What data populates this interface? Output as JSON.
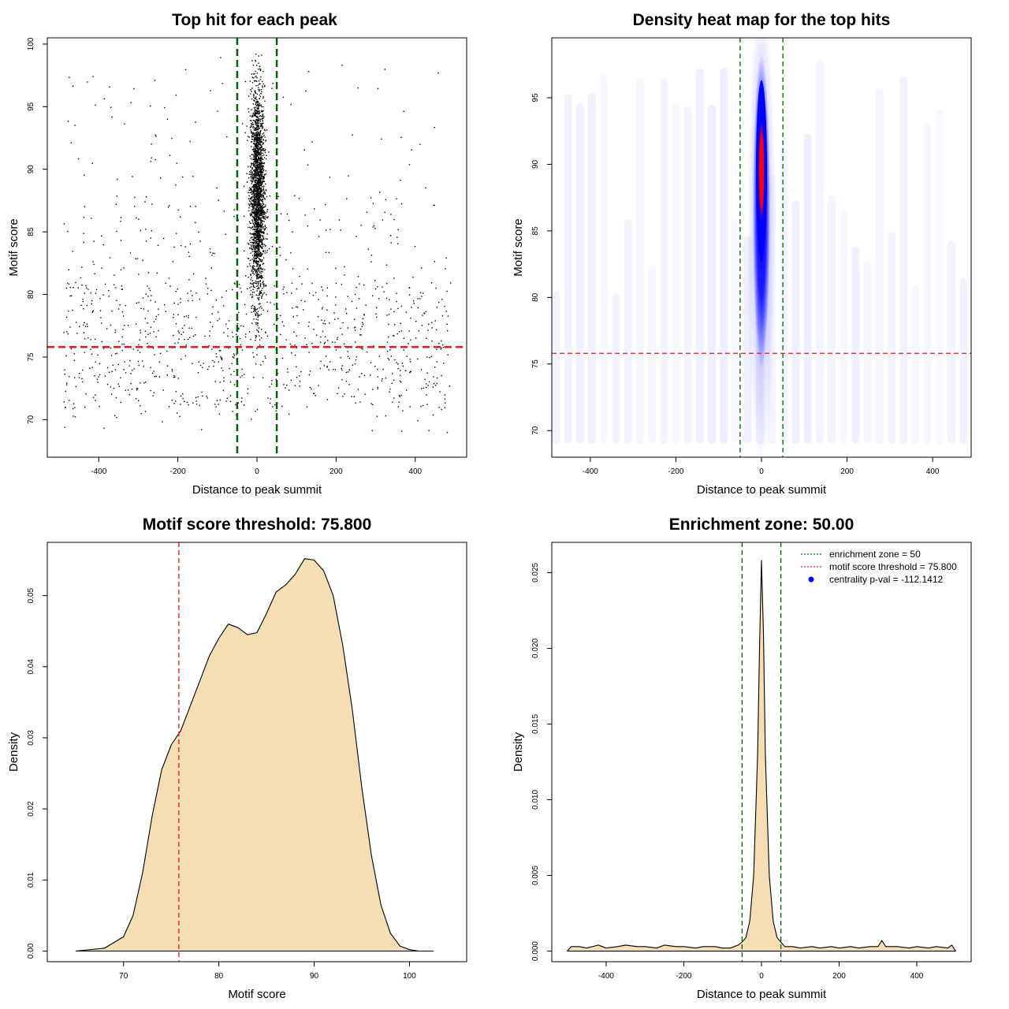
{
  "chart_data": [
    {
      "type": "scatter",
      "title": "Top hit for each peak",
      "xlabel": "Distance to peak summit",
      "ylabel": "Motif score",
      "xlim": [
        -530,
        530
      ],
      "ylim": [
        67,
        100.5
      ],
      "x_ticks": [
        -400,
        -200,
        0,
        200,
        400
      ],
      "y_ticks": [
        70,
        75,
        80,
        85,
        90,
        95,
        100
      ],
      "vlines": [
        -50,
        50
      ],
      "hline": 75.8,
      "vline_color": "#006400",
      "hline_color": "#e41a1c",
      "point_color": "#000000",
      "core_cluster": {
        "x_center": 0,
        "x_sd": 9,
        "y_min": 70,
        "y_max": 99.5,
        "y_mode": 88
      },
      "background_range": {
        "x": [
          -490,
          490
        ],
        "y": [
          68.5,
          99
        ]
      }
    },
    {
      "type": "heatmap",
      "title": "Density heat map for the top hits",
      "xlabel": "Distance to peak summit",
      "ylabel": "Motif score",
      "xlim": [
        -490,
        490
      ],
      "ylim": [
        68,
        99.5
      ],
      "x_ticks": [
        -400,
        -200,
        0,
        200,
        400
      ],
      "y_ticks": [
        70,
        75,
        80,
        85,
        90,
        95
      ],
      "vlines": [
        -50,
        50
      ],
      "hline": 75.8,
      "vline_color": "#006400",
      "hline_color": "#e41a1c",
      "colors": [
        "#ffffff",
        "#0000ff",
        "#ff0000"
      ],
      "hotspot": {
        "x": 0,
        "y": 89.5
      }
    },
    {
      "type": "area",
      "title": "Motif score threshold: 75.800",
      "xlabel": "Motif score",
      "ylabel": "Density",
      "xlim": [
        62,
        106
      ],
      "ylim": [
        -0.0015,
        0.0575
      ],
      "x_ticks": [
        70,
        80,
        90,
        100
      ],
      "y_ticks": [
        0.0,
        0.01,
        0.02,
        0.03,
        0.04,
        0.05
      ],
      "y_tick_labels": [
        "0.00",
        "0.01",
        "0.02",
        "0.03",
        "0.04",
        "0.05"
      ],
      "fill_color": "#f5deb3",
      "vline": 75.8,
      "vline_color": "#e41a1c",
      "x": [
        65,
        68,
        70,
        71,
        72,
        73,
        74,
        75,
        76,
        77,
        78,
        79,
        80,
        81,
        82,
        83,
        84,
        85,
        86,
        87,
        88,
        89,
        90,
        91,
        92,
        93,
        94,
        95,
        96,
        97,
        98,
        99,
        100,
        101,
        102.5
      ],
      "y": [
        0.0,
        0.0004,
        0.002,
        0.005,
        0.011,
        0.019,
        0.0255,
        0.029,
        0.031,
        0.0345,
        0.038,
        0.0415,
        0.044,
        0.046,
        0.0455,
        0.0445,
        0.0448,
        0.0475,
        0.0505,
        0.0515,
        0.053,
        0.0552,
        0.055,
        0.0535,
        0.05,
        0.043,
        0.034,
        0.023,
        0.0135,
        0.0065,
        0.0025,
        0.0007,
        0.0002,
        0.0,
        0.0
      ]
    },
    {
      "type": "area",
      "title": "Enrichment zone: 50.00",
      "xlabel": "Distance to peak summit",
      "ylabel": "Density",
      "xlim": [
        -540,
        540
      ],
      "ylim": [
        -0.0007,
        0.027
      ],
      "x_ticks": [
        -400,
        -200,
        0,
        200,
        400
      ],
      "y_ticks": [
        0.0,
        0.005,
        0.01,
        0.015,
        0.02,
        0.025
      ],
      "y_tick_labels": [
        "0.000",
        "0.005",
        "0.010",
        "0.015",
        "0.020",
        "0.025"
      ],
      "fill_color": "#f5deb3",
      "vlines": [
        -50,
        50
      ],
      "vline_color": "#006400",
      "x": [
        -500,
        -490,
        -470,
        -450,
        -420,
        -400,
        -370,
        -350,
        -320,
        -300,
        -270,
        -250,
        -220,
        -200,
        -170,
        -150,
        -120,
        -100,
        -80,
        -60,
        -50,
        -40,
        -30,
        -20,
        -10,
        -5,
        0,
        5,
        10,
        20,
        30,
        40,
        50,
        60,
        80,
        100,
        130,
        150,
        180,
        200,
        230,
        250,
        280,
        300,
        310,
        320,
        350,
        380,
        400,
        430,
        450,
        480,
        490,
        500
      ],
      "y": [
        0.0,
        0.0003,
        0.0003,
        0.0002,
        0.0004,
        0.0002,
        0.0003,
        0.0004,
        0.0003,
        0.0003,
        0.0002,
        0.0004,
        0.0003,
        0.0003,
        0.0002,
        0.0003,
        0.0003,
        0.0002,
        0.0002,
        0.0004,
        0.0006,
        0.0009,
        0.002,
        0.005,
        0.013,
        0.02,
        0.0258,
        0.021,
        0.013,
        0.005,
        0.002,
        0.0009,
        0.0006,
        0.0003,
        0.0003,
        0.0002,
        0.0003,
        0.0002,
        0.0003,
        0.0002,
        0.0003,
        0.0002,
        0.0003,
        0.0003,
        0.0007,
        0.0003,
        0.0003,
        0.0002,
        0.0003,
        0.0002,
        0.0003,
        0.0002,
        0.0004,
        0.0
      ],
      "legend": {
        "placement": "top-right",
        "entries": [
          {
            "label": "enrichment zone = 50",
            "style": "dotted-line",
            "color": "#006400"
          },
          {
            "label": "motif score threshold = 75.800",
            "style": "dotted-line",
            "color": "#e41a1c"
          },
          {
            "label": "centrality p-val = -112.1412",
            "style": "point",
            "color": "#0000ff"
          }
        ]
      }
    }
  ]
}
